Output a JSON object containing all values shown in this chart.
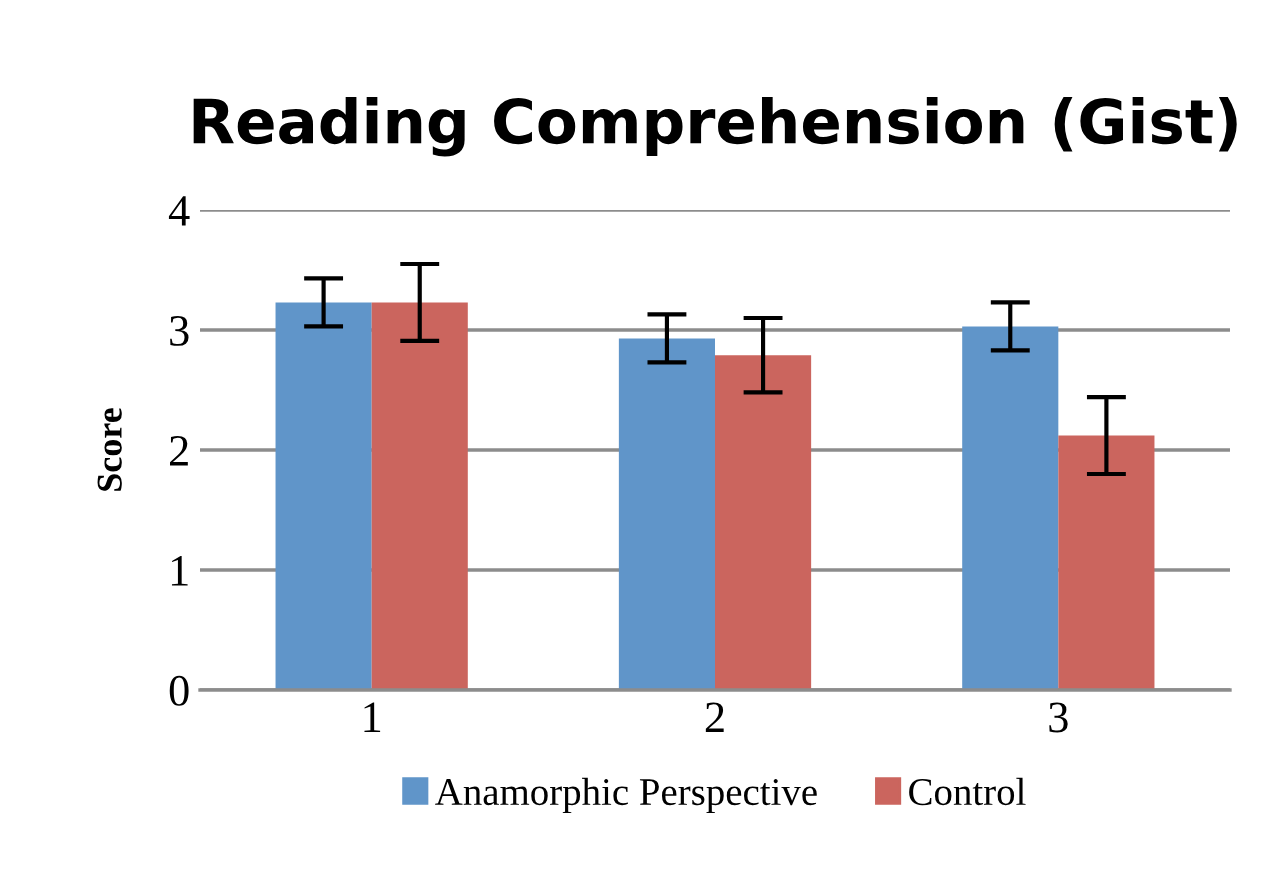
{
  "chart_data": {
    "type": "bar",
    "title": "Reading Comprehension (Gist)",
    "ylabel": "Score",
    "categories": [
      "1",
      "2",
      "3"
    ],
    "series": [
      {
        "name": "Anamorphic Perspective",
        "color": "#6095c9",
        "values": [
          3.23,
          2.93,
          3.03
        ],
        "errors": [
          0.2,
          0.2,
          0.2
        ]
      },
      {
        "name": "Control",
        "color": "#cb655e",
        "values": [
          3.23,
          2.79,
          2.12
        ],
        "errors": [
          0.32,
          0.31,
          0.32
        ]
      }
    ],
    "ylim": [
      0,
      4
    ],
    "yticks": [
      0,
      1,
      2,
      3,
      4
    ],
    "grid": "y",
    "legend": "bottom"
  }
}
